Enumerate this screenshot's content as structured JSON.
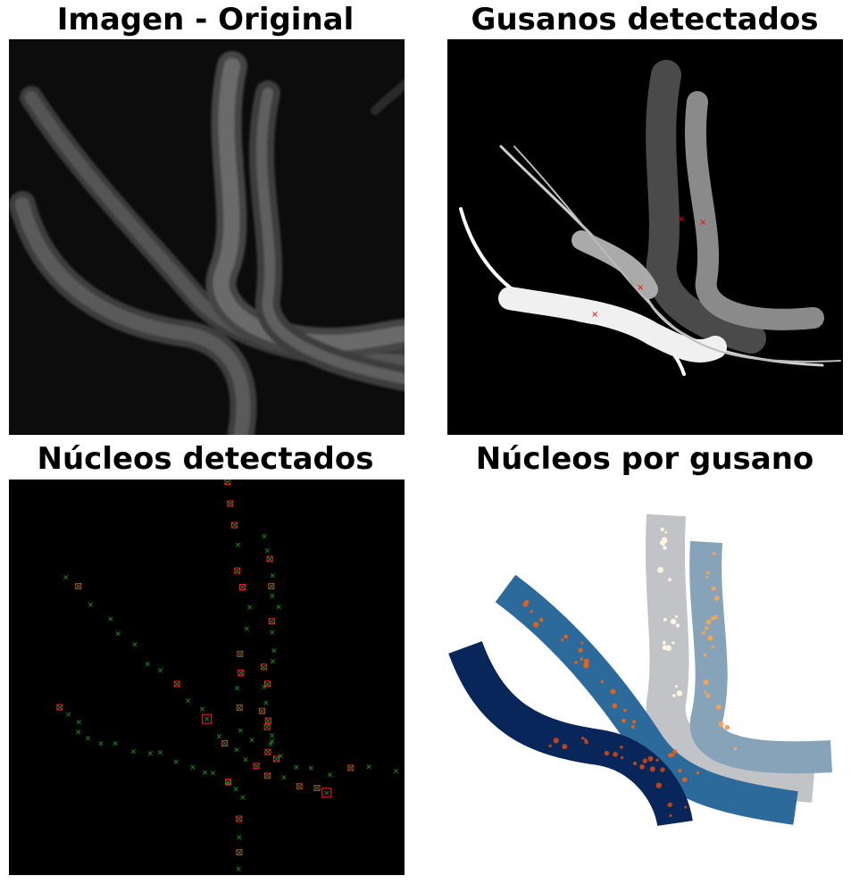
{
  "panels": [
    {
      "title": "Imagen - Original"
    },
    {
      "title": "Gusanos detectados"
    },
    {
      "title": "Núcleos detectados"
    },
    {
      "title": "Núcleos por gusano"
    }
  ],
  "colors": {
    "background_original": "#0c0c0c",
    "worm_gray": "#9a9a9a",
    "detection_marker": "#ff0000",
    "nucleus_cross": "#1f9e1f",
    "nucleus_box": "#ff2020",
    "worm_navy": "#08265a",
    "worm_blue": "#2b6a9b",
    "worm_steel": "#86a3ba",
    "worm_silver": "#c2c3c7",
    "nucleus_orange": "#e0621a"
  }
}
